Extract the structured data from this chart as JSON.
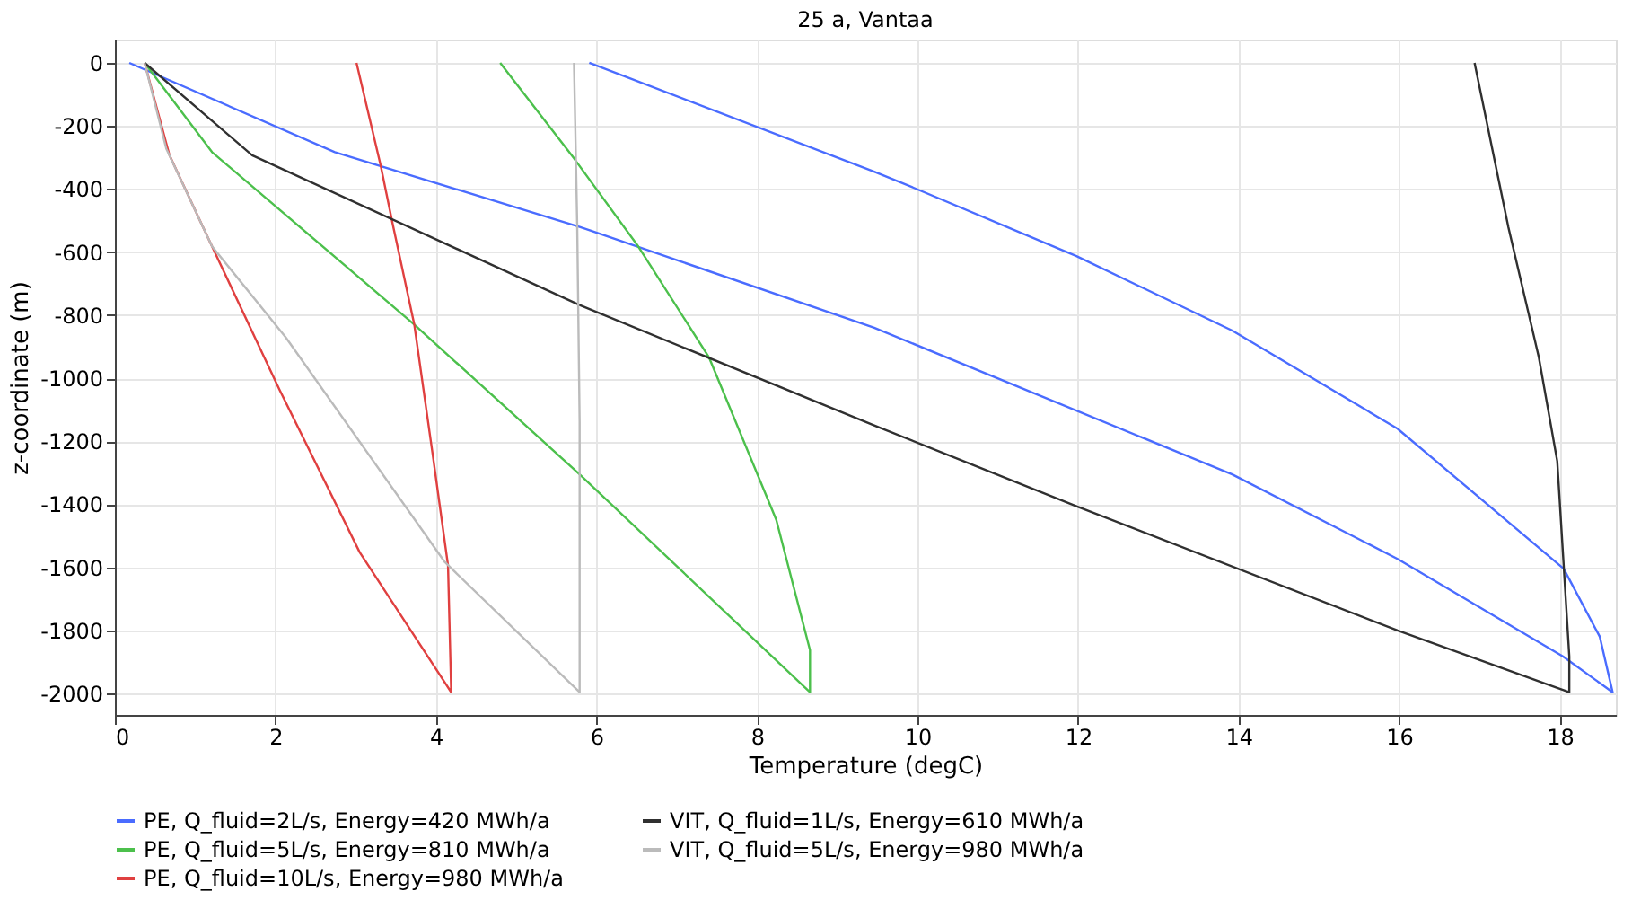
{
  "chart_data": {
    "type": "line",
    "title": "25 a, Vantaa",
    "xlabel": "Temperature (degC)",
    "ylabel": "z-coordinate (m)",
    "xlim": [
      0,
      18.7
    ],
    "xticks": [
      0,
      2,
      4,
      6,
      8,
      10,
      12,
      14,
      16,
      18
    ],
    "ylim": [
      -2068,
      74
    ],
    "yticks": [
      -2000,
      -1800,
      -1600,
      -1400,
      -1200,
      -1000,
      -800,
      -600,
      -400,
      -200,
      0
    ],
    "grid": true,
    "legend": "bottom",
    "marker": "none",
    "line_style": "solid",
    "series": [
      {
        "name": "PE, Q_fluid=2L/s, Energy=420 MWh/a",
        "color": "#4a6cff",
        "x": [
          0.18,
          2.74,
          5.79,
          9.46,
          13.92,
          15.98,
          18.04,
          18.66,
          18.5,
          18.05,
          15.98,
          13.92,
          11.98,
          9.95,
          9.46,
          5.91
        ],
        "values": [
          0,
          -283,
          -520,
          -840,
          -1305,
          -1573,
          -1882,
          -1996,
          -1820,
          -1604,
          -1160,
          -849,
          -613,
          -396,
          -345,
          0
        ]
      },
      {
        "name": "PE, Q_fluid=5L/s, Energy=810 MWh/a",
        "color": "#4cc04c",
        "x": [
          0.37,
          1.21,
          3.73,
          5.79,
          8.66,
          8.66,
          8.24,
          7.4,
          6.52,
          5.72,
          4.8
        ],
        "values": [
          0,
          -283,
          -830,
          -1305,
          -1996,
          -1862,
          -1449,
          -933,
          -582,
          -303,
          0
        ]
      },
      {
        "name": "PE, Q_fluid=10L/s, Energy=980 MWh/a",
        "color": "#e04040",
        "x": [
          0.37,
          0.68,
          1.21,
          2.05,
          3.05,
          4.19,
          4.15,
          3.96,
          3.73,
          3.46,
          3.31,
          3.01
        ],
        "values": [
          0,
          -293,
          -582,
          -1036,
          -1552,
          -1996,
          -1593,
          -1243,
          -830,
          -510,
          -324,
          0
        ]
      },
      {
        "name": "VIT, Q_fluid=1L/s, Energy=610 MWh/a",
        "color": "#303030",
        "x": [
          0.37,
          1.71,
          5.79,
          9.46,
          11.98,
          15.98,
          18.12,
          18.12,
          17.97,
          17.74,
          17.36,
          16.94
        ],
        "values": [
          0,
          -293,
          -768,
          -1150,
          -1406,
          -1800,
          -1996,
          -1882,
          -1263,
          -933,
          -520,
          0
        ]
      },
      {
        "name": "VIT, Q_fluid=5L/s, Energy=980 MWh/a",
        "color": "#bbbbbb",
        "x": [
          0.37,
          0.64,
          1.21,
          2.13,
          4.11,
          5.79,
          5.79,
          5.76,
          5.72
        ],
        "values": [
          0,
          -272,
          -582,
          -871,
          -1583,
          -1996,
          -1139,
          -520,
          0
        ]
      }
    ]
  }
}
